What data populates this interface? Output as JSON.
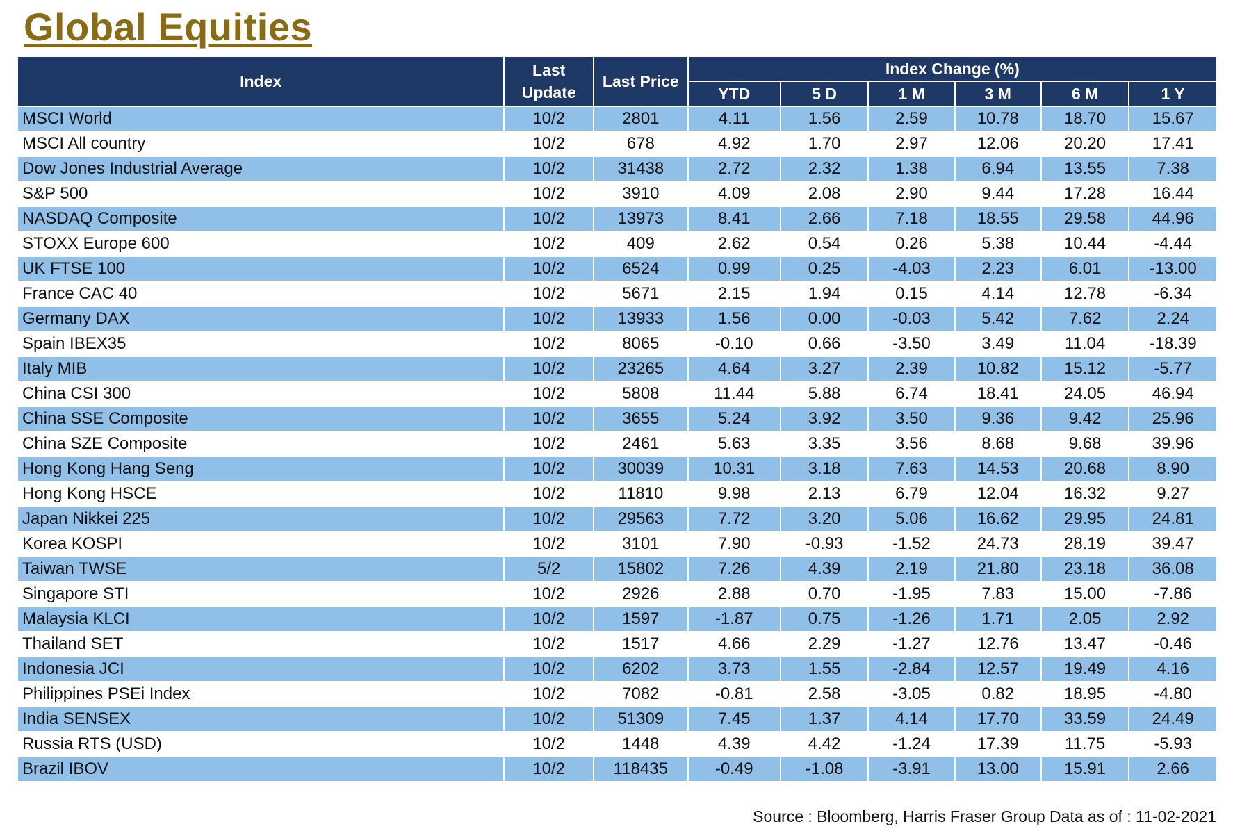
{
  "title": "Global Equities",
  "colors": {
    "header_bg": "#1f3966",
    "row_stripe": "#90c0e8",
    "title": "#8a6a12"
  },
  "headers": {
    "index": "Index",
    "last_update": "Last Update",
    "last_price": "Last Price",
    "index_change": "Index Change (%)",
    "periods": [
      "YTD",
      "5 D",
      "1 M",
      "3 M",
      "6 M",
      "1 Y"
    ]
  },
  "rows": [
    {
      "name": "MSCI World",
      "update": "10/2",
      "price": "2801",
      "ytd": "4.11",
      "d5": "1.56",
      "m1": "2.59",
      "m3": "10.78",
      "m6": "18.70",
      "y1": "15.67"
    },
    {
      "name": "MSCI All country",
      "update": "10/2",
      "price": "678",
      "ytd": "4.92",
      "d5": "1.70",
      "m1": "2.97",
      "m3": "12.06",
      "m6": "20.20",
      "y1": "17.41"
    },
    {
      "name": "Dow Jones Industrial Average",
      "update": "10/2",
      "price": "31438",
      "ytd": "2.72",
      "d5": "2.32",
      "m1": "1.38",
      "m3": "6.94",
      "m6": "13.55",
      "y1": "7.38"
    },
    {
      "name": "S&P 500",
      "update": "10/2",
      "price": "3910",
      "ytd": "4.09",
      "d5": "2.08",
      "m1": "2.90",
      "m3": "9.44",
      "m6": "17.28",
      "y1": "16.44"
    },
    {
      "name": "NASDAQ Composite",
      "update": "10/2",
      "price": "13973",
      "ytd": "8.41",
      "d5": "2.66",
      "m1": "7.18",
      "m3": "18.55",
      "m6": "29.58",
      "y1": "44.96"
    },
    {
      "name": "STOXX Europe 600",
      "update": "10/2",
      "price": "409",
      "ytd": "2.62",
      "d5": "0.54",
      "m1": "0.26",
      "m3": "5.38",
      "m6": "10.44",
      "y1": "-4.44"
    },
    {
      "name": "UK FTSE 100",
      "update": "10/2",
      "price": "6524",
      "ytd": "0.99",
      "d5": "0.25",
      "m1": "-4.03",
      "m3": "2.23",
      "m6": "6.01",
      "y1": "-13.00"
    },
    {
      "name": "France CAC 40",
      "update": "10/2",
      "price": "5671",
      "ytd": "2.15",
      "d5": "1.94",
      "m1": "0.15",
      "m3": "4.14",
      "m6": "12.78",
      "y1": "-6.34"
    },
    {
      "name": "Germany DAX",
      "update": "10/2",
      "price": "13933",
      "ytd": "1.56",
      "d5": "0.00",
      "m1": "-0.03",
      "m3": "5.42",
      "m6": "7.62",
      "y1": "2.24"
    },
    {
      "name": "Spain IBEX35",
      "update": "10/2",
      "price": "8065",
      "ytd": "-0.10",
      "d5": "0.66",
      "m1": "-3.50",
      "m3": "3.49",
      "m6": "11.04",
      "y1": "-18.39"
    },
    {
      "name": "Italy MIB",
      "update": "10/2",
      "price": "23265",
      "ytd": "4.64",
      "d5": "3.27",
      "m1": "2.39",
      "m3": "10.82",
      "m6": "15.12",
      "y1": "-5.77"
    },
    {
      "name": "China CSI 300",
      "update": "10/2",
      "price": "5808",
      "ytd": "11.44",
      "d5": "5.88",
      "m1": "6.74",
      "m3": "18.41",
      "m6": "24.05",
      "y1": "46.94"
    },
    {
      "name": "China SSE Composite",
      "update": "10/2",
      "price": "3655",
      "ytd": "5.24",
      "d5": "3.92",
      "m1": "3.50",
      "m3": "9.36",
      "m6": "9.42",
      "y1": "25.96"
    },
    {
      "name": "China SZE Composite",
      "update": "10/2",
      "price": "2461",
      "ytd": "5.63",
      "d5": "3.35",
      "m1": "3.56",
      "m3": "8.68",
      "m6": "9.68",
      "y1": "39.96"
    },
    {
      "name": "Hong Kong Hang Seng",
      "update": "10/2",
      "price": "30039",
      "ytd": "10.31",
      "d5": "3.18",
      "m1": "7.63",
      "m3": "14.53",
      "m6": "20.68",
      "y1": "8.90"
    },
    {
      "name": "Hong Kong HSCE",
      "update": "10/2",
      "price": "11810",
      "ytd": "9.98",
      "d5": "2.13",
      "m1": "6.79",
      "m3": "12.04",
      "m6": "16.32",
      "y1": "9.27"
    },
    {
      "name": "Japan Nikkei 225",
      "update": "10/2",
      "price": "29563",
      "ytd": "7.72",
      "d5": "3.20",
      "m1": "5.06",
      "m3": "16.62",
      "m6": "29.95",
      "y1": "24.81"
    },
    {
      "name": "Korea KOSPI",
      "update": "10/2",
      "price": "3101",
      "ytd": "7.90",
      "d5": "-0.93",
      "m1": "-1.52",
      "m3": "24.73",
      "m6": "28.19",
      "y1": "39.47"
    },
    {
      "name": "Taiwan TWSE",
      "update": "5/2",
      "price": "15802",
      "ytd": "7.26",
      "d5": "4.39",
      "m1": "2.19",
      "m3": "21.80",
      "m6": "23.18",
      "y1": "36.08"
    },
    {
      "name": "Singapore STI",
      "update": "10/2",
      "price": "2926",
      "ytd": "2.88",
      "d5": "0.70",
      "m1": "-1.95",
      "m3": "7.83",
      "m6": "15.00",
      "y1": "-7.86"
    },
    {
      "name": "Malaysia KLCI",
      "update": "10/2",
      "price": "1597",
      "ytd": "-1.87",
      "d5": "0.75",
      "m1": "-1.26",
      "m3": "1.71",
      "m6": "2.05",
      "y1": "2.92"
    },
    {
      "name": "Thailand SET",
      "update": "10/2",
      "price": "1517",
      "ytd": "4.66",
      "d5": "2.29",
      "m1": "-1.27",
      "m3": "12.76",
      "m6": "13.47",
      "y1": "-0.46"
    },
    {
      "name": "Indonesia JCI",
      "update": "10/2",
      "price": "6202",
      "ytd": "3.73",
      "d5": "1.55",
      "m1": "-2.84",
      "m3": "12.57",
      "m6": "19.49",
      "y1": "4.16"
    },
    {
      "name": "Philippines PSEi Index",
      "update": "10/2",
      "price": "7082",
      "ytd": "-0.81",
      "d5": "2.58",
      "m1": "-3.05",
      "m3": "0.82",
      "m6": "18.95",
      "y1": "-4.80"
    },
    {
      "name": "India SENSEX",
      "update": "10/2",
      "price": "51309",
      "ytd": "7.45",
      "d5": "1.37",
      "m1": "4.14",
      "m3": "17.70",
      "m6": "33.59",
      "y1": "24.49"
    },
    {
      "name": "Russia RTS (USD)",
      "update": "10/2",
      "price": "1448",
      "ytd": "4.39",
      "d5": "4.42",
      "m1": "-1.24",
      "m3": "17.39",
      "m6": "11.75",
      "y1": "-5.93"
    },
    {
      "name": "Brazil IBOV",
      "update": "10/2",
      "price": "118435",
      "ytd": "-0.49",
      "d5": "-1.08",
      "m1": "-3.91",
      "m3": "13.00",
      "m6": "15.91",
      "y1": "2.66"
    }
  ],
  "source": "Source : Bloomberg, Harris Fraser Group Data as of : 11-02-2021"
}
